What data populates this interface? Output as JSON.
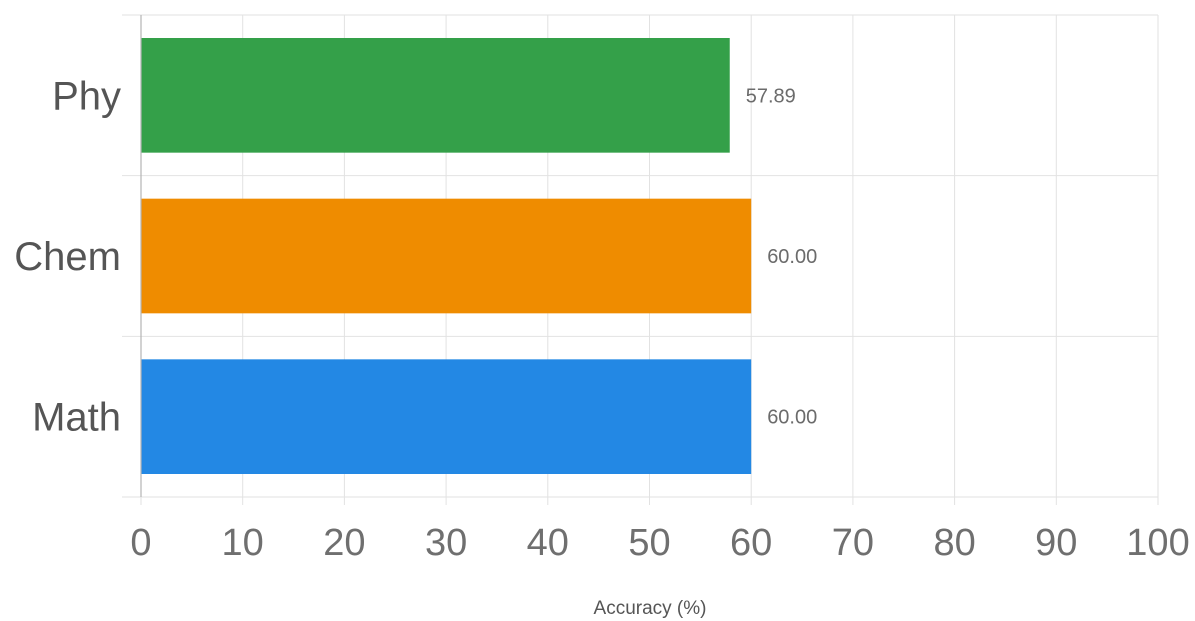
{
  "chart_data": {
    "type": "bar",
    "orientation": "horizontal",
    "categories": [
      "Phy",
      "Chem",
      "Math"
    ],
    "values": [
      57.89,
      60.0,
      60.0
    ],
    "value_labels": [
      "57.89",
      "60.00",
      "60.00"
    ],
    "colors": [
      "#34a049",
      "#ef8c00",
      "#2388e4"
    ],
    "title": "",
    "xlabel": "Accuracy (%)",
    "ylabel": "",
    "xlim": [
      0,
      100
    ],
    "xticks": [
      0,
      10,
      20,
      30,
      40,
      50,
      60,
      70,
      80,
      90,
      100
    ],
    "grid": true,
    "legend": "none"
  }
}
